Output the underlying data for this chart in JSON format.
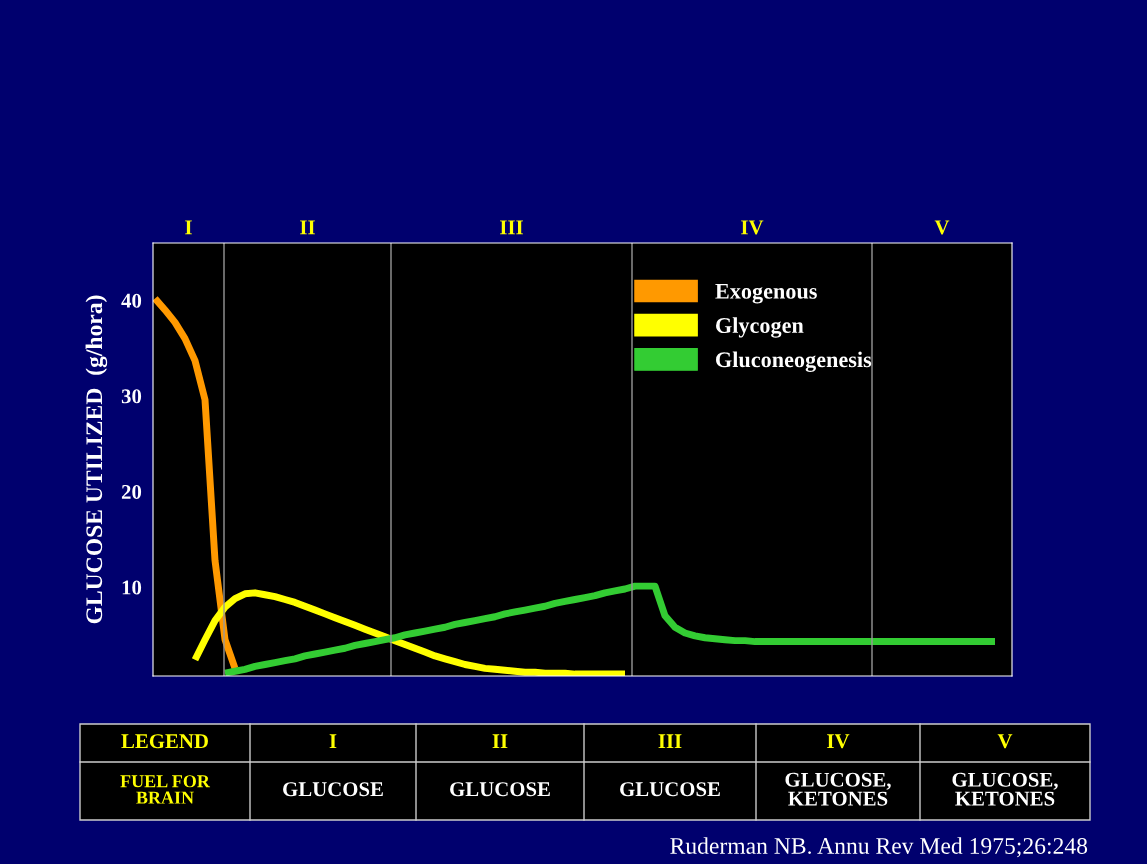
{
  "chart_data": {
    "type": "line",
    "ylabel": "GLUCOSE UTILIZED  (g/hora)",
    "categories": [
      null,
      null,
      null,
      null,
      null,
      null,
      null,
      null,
      null,
      null,
      null,
      null,
      null,
      null,
      null,
      null,
      null,
      null,
      null,
      null,
      null,
      null,
      null,
      null,
      null,
      null,
      null,
      null,
      null,
      null,
      null,
      null,
      null,
      null,
      null,
      null,
      null,
      null,
      null,
      null,
      null,
      null,
      null,
      null,
      null,
      null,
      null,
      null,
      null,
      null,
      null,
      null,
      null,
      null,
      null,
      null,
      null,
      null,
      null,
      null,
      null,
      null,
      null,
      null,
      null,
      null,
      null,
      null,
      null,
      null,
      null,
      null,
      null,
      null,
      null,
      null,
      null,
      null,
      null,
      null,
      null,
      null,
      null,
      null,
      null
    ],
    "series": [
      {
        "name": "Exogenous",
        "color": "#ff9900",
        "values": [
          40.2,
          39.0,
          37.7,
          36.0,
          33.7,
          29.6,
          12.8,
          4.5,
          1.5,
          null,
          null,
          null,
          null,
          null,
          null,
          null,
          null,
          null,
          null,
          null,
          null,
          null,
          null,
          null,
          null,
          null,
          null,
          null,
          null,
          null,
          null,
          null,
          null,
          null,
          null,
          null,
          null,
          null,
          null,
          null,
          null,
          null,
          null,
          null,
          null,
          null,
          null,
          null,
          null,
          null,
          null,
          null,
          null,
          null,
          null,
          null,
          null,
          null,
          null,
          null,
          null,
          null,
          null,
          null,
          null,
          null,
          null,
          null,
          null,
          null,
          null,
          null,
          null,
          null,
          null,
          null,
          null,
          null,
          null,
          null,
          null,
          null,
          null,
          null,
          null
        ]
      },
      {
        "name": "Glycogen",
        "color": "#ffff00",
        "values": [
          null,
          null,
          null,
          null,
          2.4,
          4.5,
          6.5,
          7.9,
          8.8,
          9.3,
          9.4,
          9.2,
          9.0,
          8.7,
          8.4,
          8.0,
          7.6,
          7.2,
          6.8,
          6.4,
          6.0,
          5.6,
          5.2,
          4.8,
          4.4,
          4.0,
          3.6,
          3.2,
          2.8,
          2.5,
          2.2,
          1.9,
          1.7,
          1.5,
          1.4,
          1.3,
          1.2,
          1.1,
          1.1,
          1.0,
          1.0,
          1.0,
          0.9,
          0.9,
          0.9,
          0.9,
          0.9,
          0.9,
          null,
          null,
          null,
          null,
          null,
          null,
          null,
          null,
          null,
          null,
          null,
          null,
          null,
          null,
          null,
          null,
          null,
          null,
          null,
          null,
          null,
          null,
          null,
          null,
          null,
          null,
          null,
          null,
          null,
          null,
          null,
          null,
          null,
          null,
          null,
          null,
          null
        ]
      },
      {
        "name": "Gluconeogenesis",
        "color": "#33cc33",
        "values": [
          null,
          null,
          null,
          null,
          null,
          null,
          null,
          1.0,
          1.2,
          1.4,
          1.7,
          1.9,
          2.1,
          2.3,
          2.5,
          2.8,
          3.0,
          3.2,
          3.4,
          3.6,
          3.9,
          4.1,
          4.3,
          4.5,
          4.7,
          5.0,
          5.2,
          5.4,
          5.6,
          5.8,
          6.1,
          6.3,
          6.5,
          6.7,
          6.9,
          7.2,
          7.4,
          7.6,
          7.8,
          8.0,
          8.3,
          8.5,
          8.7,
          8.9,
          9.1,
          9.4,
          9.6,
          9.8,
          10.1,
          10.1,
          10.1,
          7.0,
          5.8,
          5.2,
          4.9,
          4.7,
          4.6,
          4.5,
          4.4,
          4.4,
          4.3,
          4.3,
          4.3,
          4.3,
          4.3,
          4.3,
          4.3,
          4.3,
          4.3,
          4.3,
          4.3,
          4.3,
          4.3,
          4.3,
          4.3,
          4.3,
          4.3,
          4.3,
          4.3,
          4.3,
          4.3,
          4.3,
          4.3,
          4.3,
          4.3
        ]
      }
    ],
    "ylim": [
      0.7,
      46
    ],
    "yticks": [
      10,
      20,
      30,
      40
    ],
    "tick_labels": "y",
    "legend": "top right",
    "grid": false,
    "marker": "none",
    "line_style": "solid",
    "annotations": [
      "I",
      "II",
      "III",
      "IV",
      "V",
      "LEGEND",
      "I",
      "II",
      "III",
      "IV",
      "V",
      "FUEL FOR\nBRAIN",
      "GLUCOSE",
      "GLUCOSE",
      "GLUCOSE",
      "GLUCOSE,\nKETONES",
      "GLUCOSE,\nKETONES",
      "Ruderman NB. Annu Rev Med 1975;26:248"
    ]
  }
}
